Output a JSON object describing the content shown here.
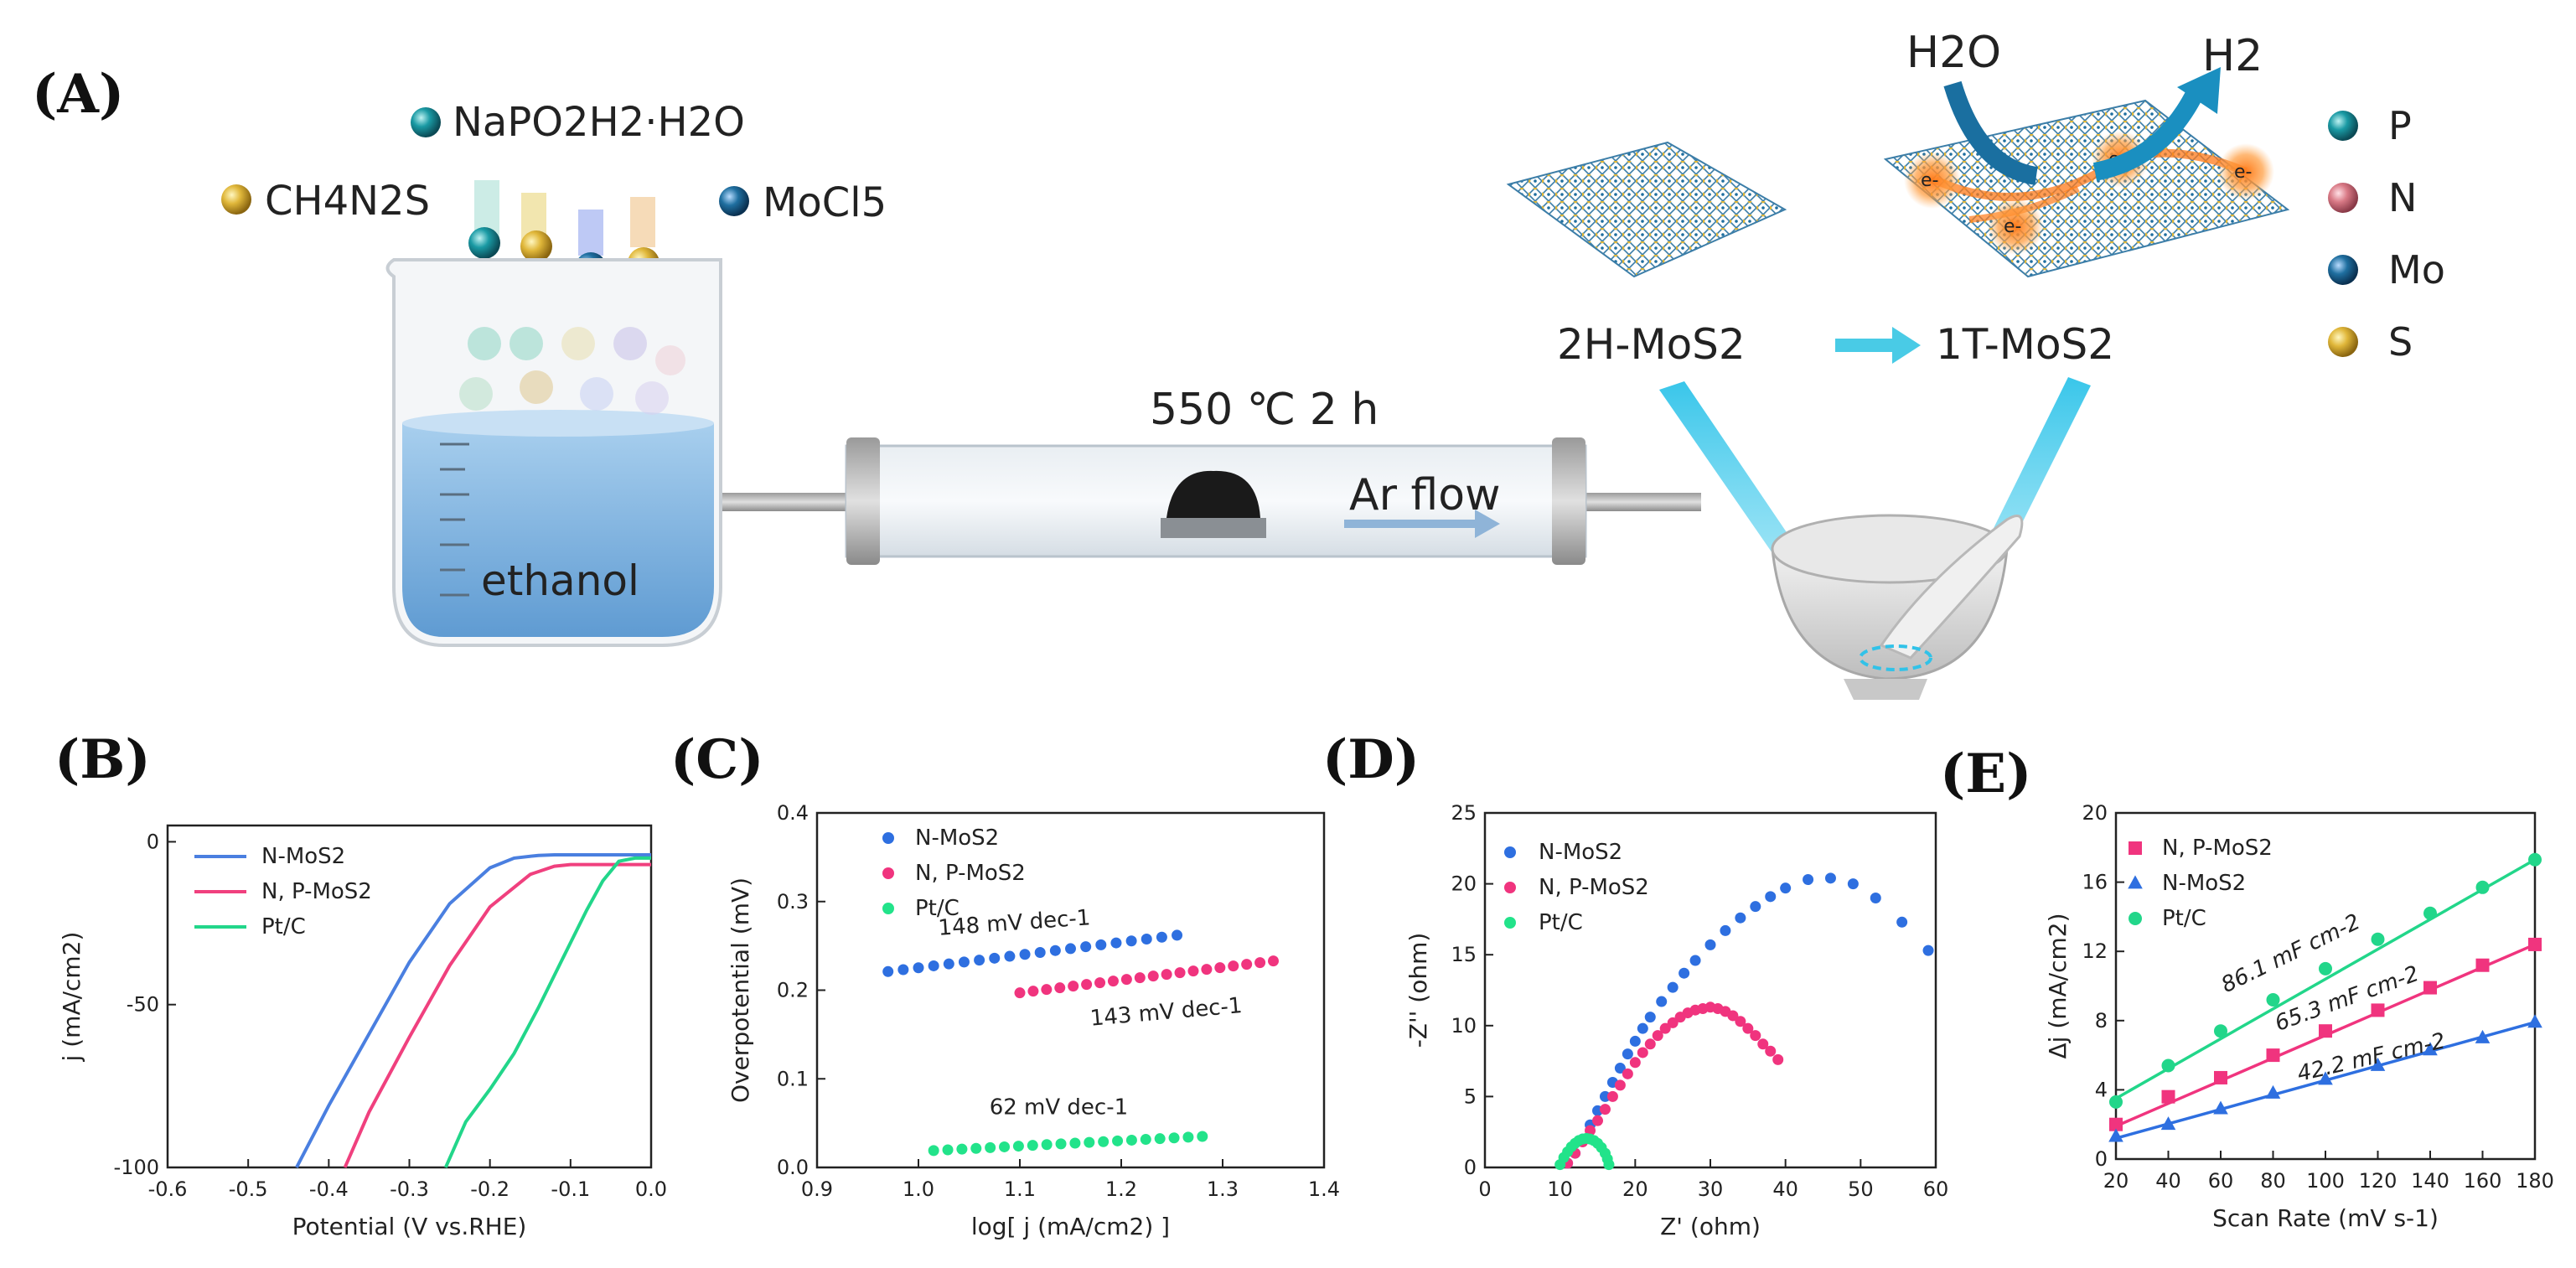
{
  "panels": {
    "A": "(A)",
    "B": "(B)",
    "C": "(C)",
    "D": "(D)",
    "E": "(E)"
  },
  "schematic": {
    "reagents": [
      {
        "name": "NaPO2H2·H2O",
        "color": "#1b7f8c"
      },
      {
        "name": "CH4N2S",
        "color": "#d8b43a"
      },
      {
        "name": "MoCl5",
        "color": "#1b5f88"
      }
    ],
    "beaker_label": "ethanol",
    "furnace_label": "550 ℃ 2 h",
    "flow_label": "Ar flow",
    "phase_from": "2H-MoS2",
    "phase_to": "1T-MoS2",
    "reactant": "H2O",
    "product": "H2",
    "electron": "e-",
    "element_legend": [
      {
        "name": "P",
        "color": "#1b8f8f"
      },
      {
        "name": "N",
        "color": "#d97a86"
      },
      {
        "name": "Mo",
        "color": "#1b6f98"
      },
      {
        "name": "S",
        "color": "#d8b43a"
      }
    ]
  },
  "chart_data": [
    {
      "panel": "B",
      "type": "line",
      "xlabel": "Potential (V vs.RHE)",
      "ylabel": "j (mA/cm2)",
      "xlim": [
        -0.6,
        0.0
      ],
      "ylim": [
        -100,
        5
      ],
      "xticks": [
        "-0.6",
        "-0.5",
        "-0.4",
        "-0.3",
        "-0.2",
        "-0.1",
        "0.0"
      ],
      "yticks": [
        "-100",
        "-50",
        "0"
      ],
      "series": [
        {
          "name": "N-MoS2",
          "color": "#4a7fe0",
          "x": [
            -0.44,
            -0.4,
            -0.35,
            -0.3,
            -0.25,
            -0.2,
            -0.17,
            -0.14,
            -0.12,
            -0.1,
            -0.05,
            0.0
          ],
          "y": [
            -100,
            -81,
            -59,
            -37,
            -19,
            -8,
            -5,
            -4.2,
            -4,
            -4,
            -4,
            -4
          ]
        },
        {
          "name": "N, P-MoS2",
          "color": "#f0407e",
          "x": [
            -0.38,
            -0.35,
            -0.3,
            -0.25,
            -0.2,
            -0.15,
            -0.12,
            -0.1,
            -0.08,
            -0.05,
            0.0
          ],
          "y": [
            -100,
            -83,
            -60,
            -38,
            -20,
            -10,
            -7.5,
            -7,
            -7,
            -7,
            -7
          ]
        },
        {
          "name": "Pt/C",
          "color": "#22d68a",
          "x": [
            -0.255,
            -0.23,
            -0.2,
            -0.17,
            -0.14,
            -0.11,
            -0.08,
            -0.06,
            -0.04,
            -0.02,
            0.0
          ],
          "y": [
            -100,
            -86,
            -76,
            -65,
            -51,
            -36,
            -21,
            -12,
            -6,
            -5,
            -5
          ]
        }
      ],
      "legend": [
        "N-MoS2",
        "N, P-MoS2",
        "Pt/C"
      ]
    },
    {
      "panel": "C",
      "type": "scatter",
      "xlabel": "log[ j (mA/cm2) ]",
      "ylabel": "Overpotential (mV)",
      "xlim": [
        0.9,
        1.4
      ],
      "ylim": [
        0.0,
        0.4
      ],
      "xticks": [
        "0.9",
        "1.0",
        "1.1",
        "1.2",
        "1.3",
        "1.4"
      ],
      "yticks": [
        "0.0",
        "0.1",
        "0.2",
        "0.3",
        "0.4"
      ],
      "series": [
        {
          "name": "N-MoS2",
          "color": "#2e6fe0",
          "x_start": 0.97,
          "x_end": 1.255,
          "y_start": 0.221,
          "y_end": 0.262,
          "n": 20
        },
        {
          "name": "N, P-MoS2",
          "color": "#f0347e",
          "x_start": 1.1,
          "x_end": 1.35,
          "y_start": 0.197,
          "y_end": 0.233,
          "n": 20
        },
        {
          "name": "Pt/C",
          "color": "#22e38a",
          "x_start": 1.015,
          "x_end": 1.28,
          "y_start": 0.019,
          "y_end": 0.035,
          "n": 20
        }
      ],
      "annotations": [
        {
          "text": "148 mV dec-1",
          "color": "#5b8ee8",
          "x": 1.02,
          "y": 0.262,
          "rotate": -4
        },
        {
          "text": "143 mV dec-1",
          "color": "#f0347e",
          "x": 1.17,
          "y": 0.16,
          "rotate": -5
        },
        {
          "text": "62 mV dec-1",
          "color": "#22d68a",
          "x": 1.07,
          "y": 0.06,
          "rotate": 0
        }
      ],
      "legend": [
        "N-MoS2",
        "N, P-MoS2",
        "Pt/C"
      ]
    },
    {
      "panel": "D",
      "type": "scatter",
      "xlabel": "Z' (ohm)",
      "ylabel": "-Z'' (ohm)",
      "xlim": [
        0,
        60
      ],
      "ylim": [
        0,
        25
      ],
      "xticks": [
        "0",
        "10",
        "20",
        "30",
        "40",
        "50",
        "60"
      ],
      "yticks": [
        "0",
        "5",
        "10",
        "15",
        "20",
        "25"
      ],
      "series": [
        {
          "name": "N-MoS2",
          "color": "#2e6fe0",
          "x": [
            11,
            12,
            13,
            14,
            15,
            16,
            17,
            18,
            19,
            20,
            21,
            22,
            23.5,
            25,
            26.5,
            28,
            30,
            32,
            34,
            36,
            38,
            40,
            43,
            46,
            49,
            52,
            55.5,
            59
          ],
          "y": [
            0.3,
            1.0,
            2.0,
            3.0,
            4.0,
            5.0,
            6.0,
            7.0,
            8.0,
            8.9,
            9.8,
            10.6,
            11.7,
            12.7,
            13.7,
            14.6,
            15.7,
            16.7,
            17.6,
            18.4,
            19.1,
            19.7,
            20.3,
            20.4,
            20.0,
            19.0,
            17.3,
            15.3
          ]
        },
        {
          "name": "N, P-MoS2",
          "color": "#f0347e",
          "x": [
            11,
            12,
            13,
            14,
            15,
            16,
            17,
            18,
            19,
            20,
            21,
            22,
            23,
            24,
            25,
            26,
            27,
            28,
            29,
            30,
            31,
            32,
            33,
            34,
            35,
            36,
            37,
            38,
            39
          ],
          "y": [
            0.3,
            1.0,
            1.8,
            2.6,
            3.3,
            4.1,
            5.0,
            5.8,
            6.6,
            7.4,
            8.1,
            8.7,
            9.3,
            9.8,
            10.2,
            10.6,
            10.9,
            11.1,
            11.2,
            11.3,
            11.2,
            11.0,
            10.7,
            10.3,
            9.8,
            9.3,
            8.7,
            8.2,
            7.6
          ]
        },
        {
          "name": "Pt/C",
          "color": "#22e38a",
          "x": [
            10.0,
            10.5,
            11.0,
            11.5,
            12.0,
            12.5,
            13.0,
            13.5,
            14.0,
            14.5,
            15.0,
            15.5,
            16.0,
            16.3,
            16.5
          ],
          "y": [
            0.2,
            0.7,
            1.1,
            1.45,
            1.7,
            1.9,
            2.0,
            2.05,
            2.0,
            1.9,
            1.7,
            1.4,
            1.0,
            0.6,
            0.2
          ]
        }
      ],
      "legend": [
        "N-MoS2",
        "N, P-MoS2",
        "Pt/C"
      ]
    },
    {
      "panel": "E",
      "type": "scatter",
      "xlabel": "Scan Rate (mV s-1)",
      "ylabel": "Δj (mA/cm2)",
      "xlim": [
        20,
        180
      ],
      "ylim": [
        0,
        20
      ],
      "xticks": [
        "20",
        "40",
        "60",
        "80",
        "100",
        "120",
        "140",
        "160",
        "180"
      ],
      "yticks": [
        "0",
        "4",
        "8",
        "12",
        "16",
        "20"
      ],
      "x": [
        20,
        40,
        60,
        80,
        100,
        120,
        140,
        160,
        180
      ],
      "series": [
        {
          "name": "N, P-MoS2",
          "color": "#f0347e",
          "marker": "square",
          "y": [
            2.0,
            3.6,
            4.7,
            6.0,
            7.4,
            8.6,
            9.9,
            11.2,
            12.4
          ],
          "fit": [
            1.9,
            12.4
          ]
        },
        {
          "name": "N-MoS2",
          "color": "#2e6fe0",
          "marker": "triangle",
          "y": [
            1.3,
            2.0,
            2.9,
            3.8,
            4.6,
            5.4,
            6.3,
            7.0,
            7.9
          ],
          "fit": [
            1.2,
            7.9
          ]
        },
        {
          "name": "Pt/C",
          "color": "#22d68a",
          "marker": "circle",
          "y": [
            3.3,
            5.4,
            7.4,
            9.2,
            11.0,
            12.7,
            14.2,
            15.7,
            17.3
          ],
          "fit": [
            3.5,
            17.3
          ]
        }
      ],
      "annotations": [
        {
          "text": "86.1 mF cm-2",
          "color": "#22d68a",
          "x": 62,
          "y": 9.6,
          "rotate": -26
        },
        {
          "text": "65.3 mF cm-2",
          "color": "#f0347e",
          "x": 82,
          "y": 7.4,
          "rotate": -20
        },
        {
          "text": "42.2 mF cm-2",
          "color": "#2e6fe0",
          "x": 90,
          "y": 4.5,
          "rotate": -13
        }
      ],
      "legend": [
        "N, P-MoS2",
        "N-MoS2",
        "Pt/C"
      ]
    }
  ]
}
